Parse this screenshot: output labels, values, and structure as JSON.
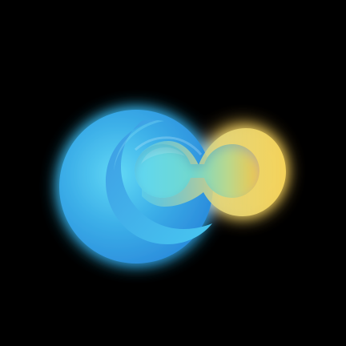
{
  "logo": {
    "icon_name": "connection-c-logo-icon",
    "colors": {
      "background": "#000000",
      "glow_cyan": "#32C8F0",
      "blue_main": "#2F9BE6",
      "blue_light": "#59D6F5",
      "teal": "#74D8C9",
      "yellow": "#F2C24C",
      "yellow_light": "#F7D97A"
    }
  }
}
